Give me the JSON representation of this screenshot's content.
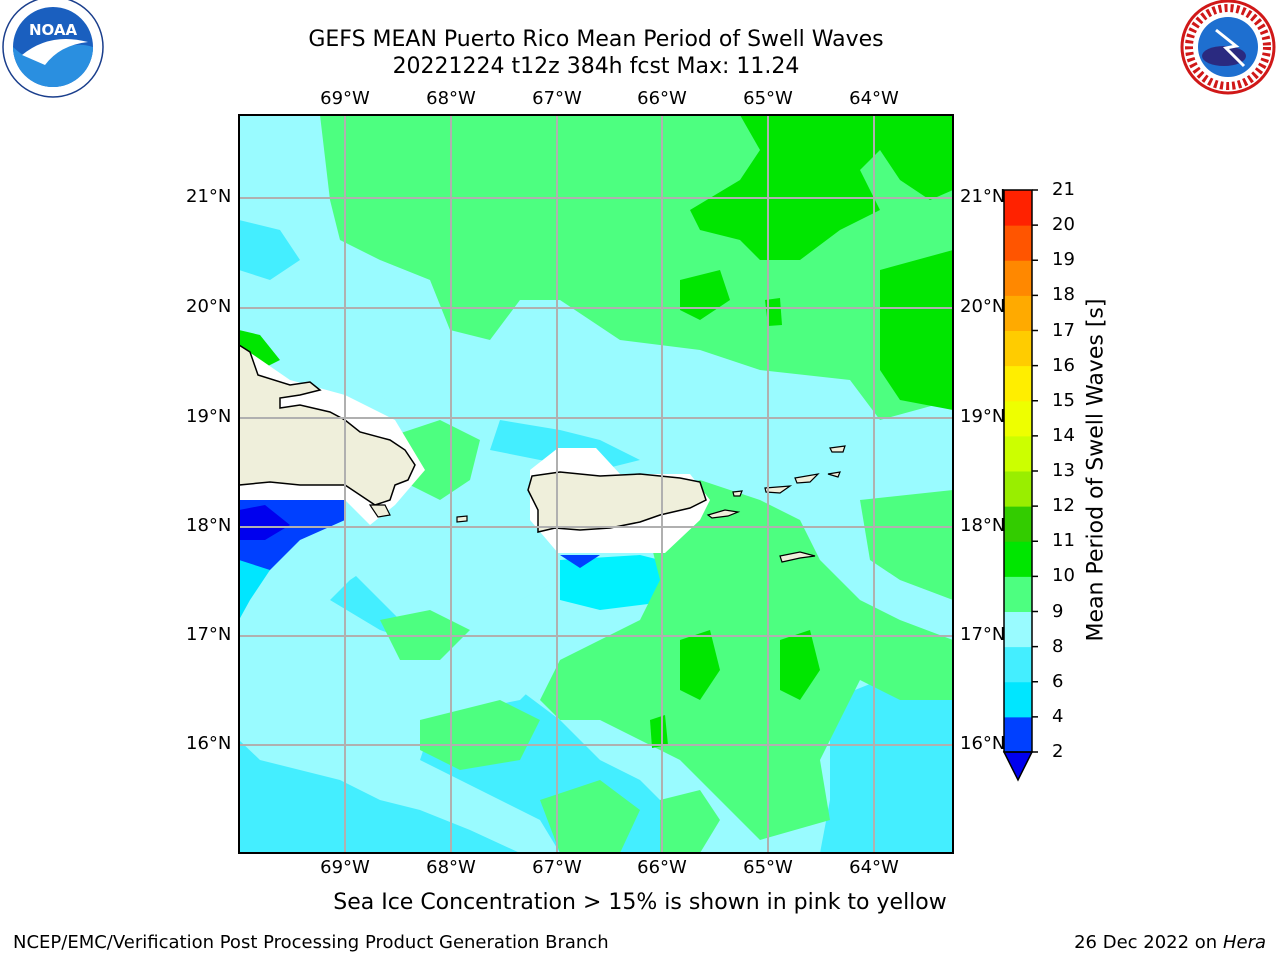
{
  "title_line1": "GEFS MEAN Puerto Rico Mean Period of Swell Waves",
  "title_line2": "20221224 t12z 384h fcst   Max: 11.24",
  "lon_labels": [
    "69°W",
    "68°W",
    "67°W",
    "66°W",
    "65°W",
    "64°W"
  ],
  "lat_labels": [
    "21°N",
    "20°N",
    "19°N",
    "18°N",
    "17°N",
    "16°N"
  ],
  "colorbar": {
    "title": "Mean Period of Swell Waves [s]",
    "levels": [
      "2",
      "4",
      "6",
      "8",
      "9",
      "10",
      "11",
      "12",
      "13",
      "14",
      "15",
      "16",
      "17",
      "18",
      "19",
      "20",
      "21"
    ],
    "colors": [
      "#0040ff",
      "#00e6ff",
      "#44eeff",
      "#99fbff",
      "#4dff80",
      "#00e600",
      "#33cc00",
      "#99ee00",
      "#ccff00",
      "#eeff00",
      "#ffee00",
      "#ffcc00",
      "#ffaa00",
      "#ff8800",
      "#ff5500",
      "#ff2200"
    ],
    "under_color": "#0000ee"
  },
  "caption": "Sea Ice Concentration > 15% is shown in pink to yellow",
  "footer_left": "NCEP/EMC/Verification Post Processing Product Generation Branch",
  "footer_date": "26 Dec 2022 on",
  "footer_host": "Hera",
  "logos": {
    "left": "noaa-logo",
    "right": "national-weather-service-logo"
  }
}
